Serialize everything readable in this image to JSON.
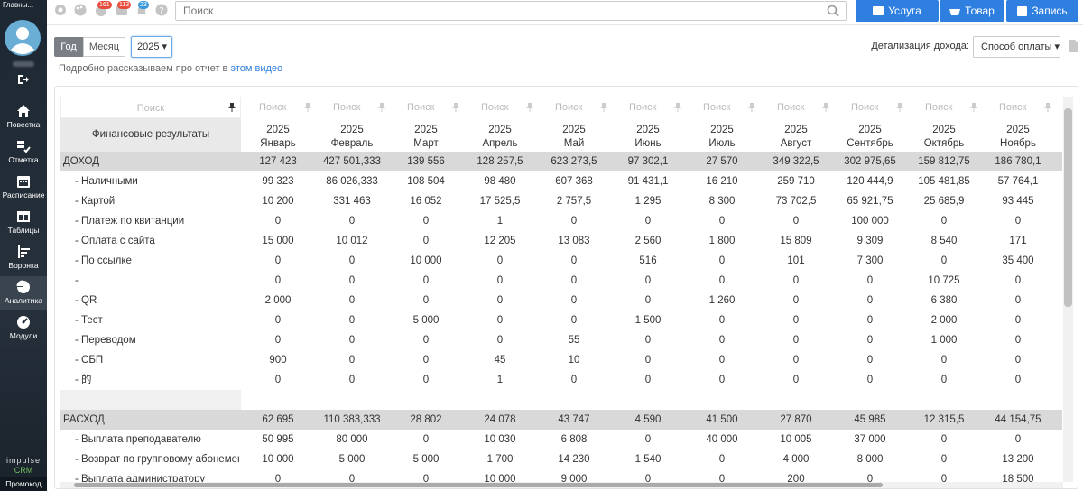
{
  "sidebar": {
    "title": "Главны...",
    "nav": [
      "Повестка",
      "Отметка",
      "Расписание",
      "Таблицы",
      "Воронка",
      "Аналитика",
      "Модули"
    ],
    "active": 5,
    "logo": {
      "line1": "impulse",
      "line2": "CRM"
    },
    "promo": "Промокод"
  },
  "topbar": {
    "badges": [
      "161",
      "113",
      "23"
    ],
    "search_placeholder": "Поиск",
    "buttons": [
      "Услуга",
      "Товар",
      "Запись"
    ]
  },
  "toolbar": {
    "periods": [
      "Год",
      "Месяц"
    ],
    "year": "2025",
    "detail_label": "Детализация дохода:",
    "detail_value": "Способ оплаты"
  },
  "hint": {
    "text": "Подробно рассказываем про отчет в",
    "link": "этом видео"
  },
  "table": {
    "search_placeholder": "Поиск",
    "header": "Финансовые результаты",
    "columns": [
      {
        "year": "2025",
        "month": "Январь"
      },
      {
        "year": "2025",
        "month": "Февраль"
      },
      {
        "year": "2025",
        "month": "Март"
      },
      {
        "year": "2025",
        "month": "Апрель"
      },
      {
        "year": "2025",
        "month": "Май"
      },
      {
        "year": "2025",
        "month": "Июнь"
      },
      {
        "year": "2025",
        "month": "Июль"
      },
      {
        "year": "2025",
        "month": "Август"
      },
      {
        "year": "2025",
        "month": "Сентябрь"
      },
      {
        "year": "2025",
        "month": "Октябрь"
      },
      {
        "year": "2025",
        "month": "Ноябрь"
      }
    ],
    "sections": [
      {
        "label": "ДОХОД",
        "values": [
          "127 423",
          "427 501,333",
          "139 556",
          "128 257,5",
          "623 273,5",
          "97 302,1",
          "27 570",
          "349 322,5",
          "302 975,65",
          "159 812,75",
          "186 780,1"
        ],
        "rows": [
          {
            "label": "- Наличными",
            "values": [
              "99 323",
              "86 026,333",
              "108 504",
              "98 480",
              "607 368",
              "91 431,1",
              "16 210",
              "259 710",
              "120 444,9",
              "105 481,85",
              "57 764,1"
            ]
          },
          {
            "label": "- Картой",
            "values": [
              "10 200",
              "331 463",
              "16 052",
              "17 525,5",
              "2 757,5",
              "1 295",
              "8 300",
              "73 702,5",
              "65 921,75",
              "25 685,9",
              "93 445"
            ]
          },
          {
            "label": "- Платеж по квитанции",
            "values": [
              "0",
              "0",
              "0",
              "1",
              "0",
              "0",
              "0",
              "0",
              "100 000",
              "0",
              "0"
            ]
          },
          {
            "label": "- Оплата с сайта",
            "values": [
              "15 000",
              "10 012",
              "0",
              "12 205",
              "13 083",
              "2 560",
              "1 800",
              "15 809",
              "9 309",
              "8 540",
              "171"
            ]
          },
          {
            "label": "- По ссылке",
            "values": [
              "0",
              "0",
              "10 000",
              "0",
              "0",
              "516",
              "0",
              "101",
              "7 300",
              "0",
              "35 400"
            ]
          },
          {
            "label": "-",
            "values": [
              "0",
              "0",
              "0",
              "0",
              "0",
              "0",
              "0",
              "0",
              "0",
              "10 725",
              "0"
            ]
          },
          {
            "label": "- QR",
            "values": [
              "2 000",
              "0",
              "0",
              "0",
              "0",
              "0",
              "1 260",
              "0",
              "0",
              "6 380",
              "0"
            ]
          },
          {
            "label": "- Тест",
            "values": [
              "0",
              "0",
              "5 000",
              "0",
              "0",
              "1 500",
              "0",
              "0",
              "0",
              "2 000",
              "0"
            ]
          },
          {
            "label": "- Переводом",
            "values": [
              "0",
              "0",
              "0",
              "0",
              "55",
              "0",
              "0",
              "0",
              "0",
              "1 000",
              "0"
            ]
          },
          {
            "label": "- СБП",
            "values": [
              "900",
              "0",
              "0",
              "45",
              "10",
              "0",
              "0",
              "0",
              "0",
              "0",
              "0"
            ]
          },
          {
            "label": "- 的",
            "values": [
              "0",
              "0",
              "0",
              "1",
              "0",
              "0",
              "0",
              "0",
              "0",
              "0",
              "0"
            ]
          }
        ]
      },
      {
        "label": "РАСХОД",
        "values": [
          "62 695",
          "110 383,333",
          "28 802",
          "24 078",
          "43 747",
          "4 590",
          "41 500",
          "27 870",
          "45 985",
          "12 315,5",
          "44 154,75"
        ],
        "rows": [
          {
            "label": "- Выплата преподавателю",
            "values": [
              "50 995",
              "80 000",
              "0",
              "10 030",
              "6 808",
              "0",
              "40 000",
              "10 005",
              "37 000",
              "0",
              "0"
            ]
          },
          {
            "label": "- Возврат по групповому абонементу",
            "values": [
              "10 000",
              "5 000",
              "5 000",
              "1 700",
              "14 230",
              "1 540",
              "0",
              "4 000",
              "8 000",
              "0",
              "13 200"
            ]
          },
          {
            "label": "- Выплата администратору",
            "values": [
              "0",
              "0",
              "0",
              "10 000",
              "9 000",
              "0",
              "0",
              "200",
              "0",
              "0",
              "18 500"
            ]
          }
        ]
      }
    ]
  }
}
